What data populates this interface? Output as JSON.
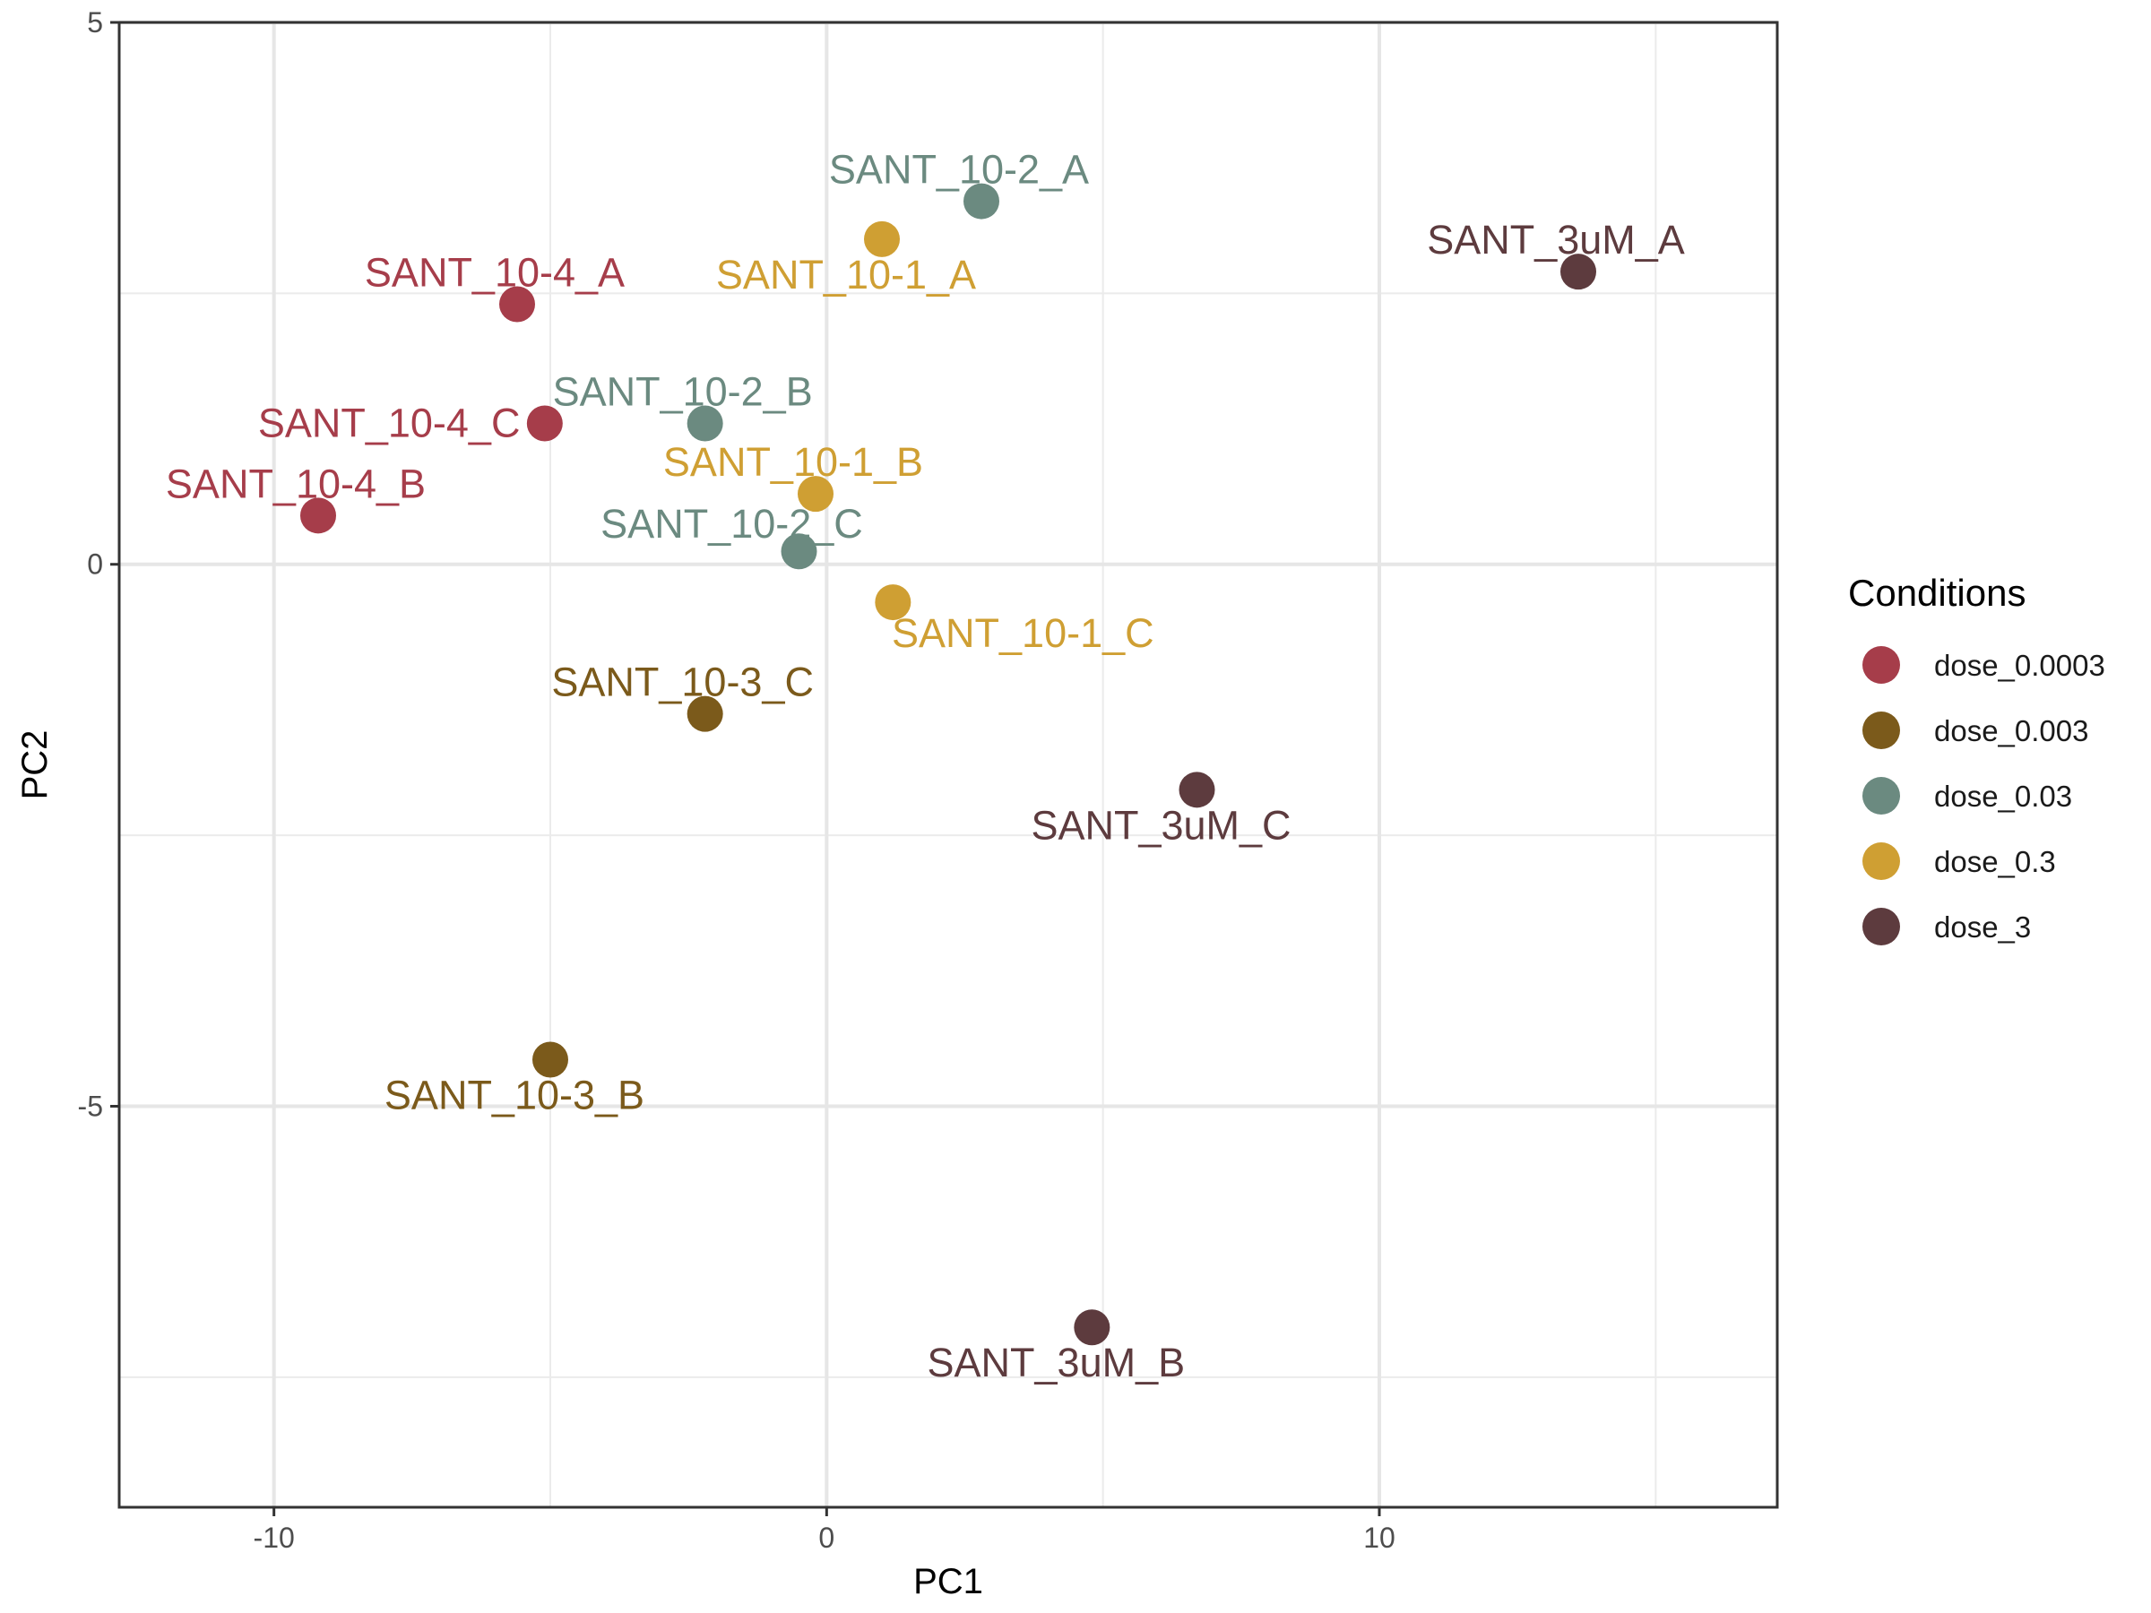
{
  "chart_data": {
    "type": "scatter",
    "title": "",
    "xlabel": "PC1",
    "ylabel": "PC2",
    "xlim": [
      -12.8,
      17.2
    ],
    "ylim": [
      -8.7,
      5
    ],
    "x_ticks": [
      -10,
      0,
      10
    ],
    "x_tick_labels": [
      "-10",
      "0",
      "10"
    ],
    "y_ticks": [
      -5,
      0,
      5
    ],
    "y_tick_labels": [
      "-5",
      "0",
      "5"
    ],
    "grid": true,
    "legend": {
      "title": "Conditions",
      "position": "right",
      "entries": [
        {
          "name": "dose_0.0003",
          "color": "#a63d4a"
        },
        {
          "name": "dose_0.003",
          "color": "#7b5a1b"
        },
        {
          "name": "dose_0.03",
          "color": "#6b8a80"
        },
        {
          "name": "dose_0.3",
          "color": "#cf9f33"
        },
        {
          "name": "dose_3",
          "color": "#5d3b3e"
        }
      ]
    },
    "points": [
      {
        "label": "SANT_10-2_A",
        "group": "dose_0.03",
        "x": 2.8,
        "y": 3.35,
        "label_pos": "above"
      },
      {
        "label": "SANT_10-1_A",
        "group": "dose_0.3",
        "x": 1.0,
        "y": 3.0,
        "label_pos": "below-left"
      },
      {
        "label": "SANT_3uM_A",
        "group": "dose_3",
        "x": 13.6,
        "y": 2.7,
        "label_pos": "above"
      },
      {
        "label": "SANT_10-4_A",
        "group": "dose_0.0003",
        "x": -5.6,
        "y": 2.4,
        "label_pos": "above"
      },
      {
        "label": "SANT_10-4_C",
        "group": "dose_0.0003",
        "x": -5.1,
        "y": 1.3,
        "label_pos": "left"
      },
      {
        "label": "SANT_10-2_B",
        "group": "dose_0.03",
        "x": -2.2,
        "y": 1.3,
        "label_pos": "above"
      },
      {
        "label": "SANT_10-1_B",
        "group": "dose_0.3",
        "x": -0.2,
        "y": 0.65,
        "label_pos": "above"
      },
      {
        "label": "SANT_10-4_B",
        "group": "dose_0.0003",
        "x": -9.2,
        "y": 0.45,
        "label_pos": "above"
      },
      {
        "label": "SANT_10-2_C",
        "group": "dose_0.03",
        "x": -0.5,
        "y": 0.12,
        "label_pos": "above-left"
      },
      {
        "label": "SANT_10-1_C",
        "group": "dose_0.3",
        "x": 1.2,
        "y": -0.35,
        "label_pos": "below-right"
      },
      {
        "label": "SANT_10-3_C",
        "group": "dose_0.003",
        "x": -2.2,
        "y": -1.38,
        "label_pos": "above"
      },
      {
        "label": "SANT_3uM_C",
        "group": "dose_3",
        "x": 6.7,
        "y": -2.08,
        "label_pos": "below-left"
      },
      {
        "label": "SANT_10-3_B",
        "group": "dose_0.003",
        "x": -5.0,
        "y": -4.57,
        "label_pos": "below-left"
      },
      {
        "label": "SANT_3uM_B",
        "group": "dose_3",
        "x": 4.8,
        "y": -7.04,
        "label_pos": "below-left"
      }
    ]
  }
}
